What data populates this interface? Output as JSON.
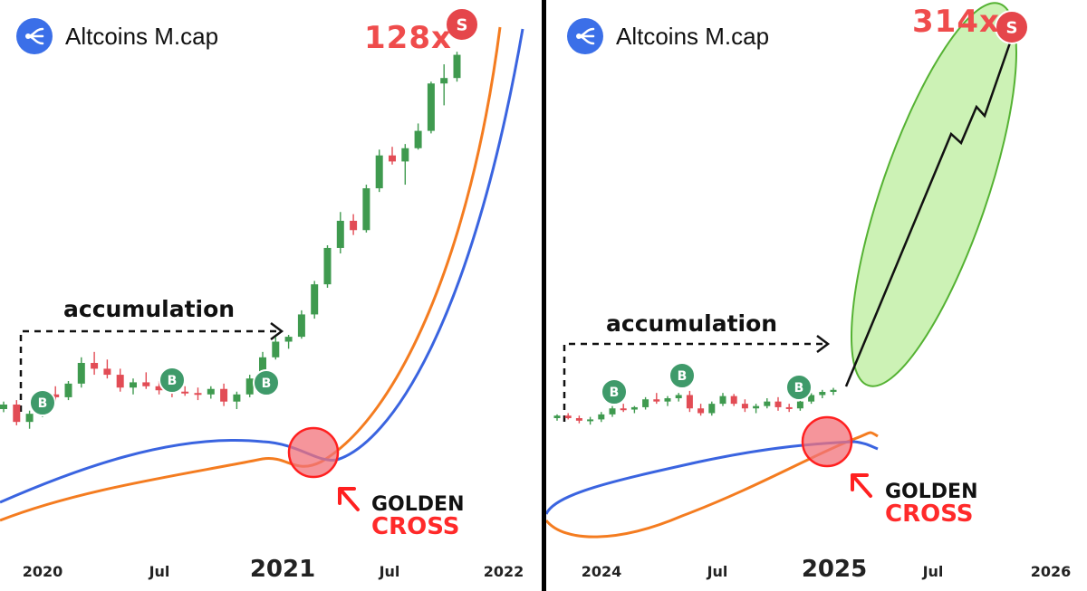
{
  "left": {
    "brand": "Altcoins M.cap",
    "multiplier": "128x",
    "accumulation": "accumulation",
    "golden_cross": [
      "GOLDEN",
      "CROSS"
    ],
    "buy_label": "B",
    "sell_label": "S",
    "x_ticks": [
      "2020",
      "Jul",
      "2021",
      "Jul",
      "2022"
    ]
  },
  "right": {
    "brand": "Altcoins M.cap",
    "multiplier": "314x",
    "accumulation": "accumulation",
    "golden_cross": [
      "GOLDEN",
      "CROSS"
    ],
    "buy_label": "B",
    "sell_label": "S",
    "x_ticks": [
      "2024",
      "Jul",
      "2025",
      "Jul",
      "2026"
    ]
  },
  "colors": {
    "up": "#3f9a4f",
    "down": "#e24c55",
    "orange_ma": "#f47c20",
    "blue_ma": "#3a64e0",
    "buy_badge": "#3f9a6a",
    "sell_badge": "#e5464b",
    "cross_circle": "#f2727a",
    "projection_fill": "#c3f0a8"
  },
  "chart_data": [
    {
      "type": "candlestick",
      "title": "Altcoins M.cap",
      "x_ticks": [
        "2020",
        "Jul",
        "2021",
        "Jul",
        "2022"
      ],
      "candles_relative": [
        [
          1.0,
          1.05,
          0.98,
          1.03
        ],
        [
          1.03,
          1.06,
          0.9,
          0.92
        ],
        [
          0.92,
          0.99,
          0.88,
          0.97
        ],
        [
          0.97,
          1.12,
          0.95,
          1.1
        ],
        [
          1.1,
          1.16,
          1.05,
          1.08
        ],
        [
          1.08,
          1.2,
          1.06,
          1.18
        ],
        [
          1.18,
          1.4,
          1.15,
          1.35
        ],
        [
          1.35,
          1.45,
          1.25,
          1.3
        ],
        [
          1.3,
          1.38,
          1.22,
          1.25
        ],
        [
          1.25,
          1.3,
          1.12,
          1.15
        ],
        [
          1.15,
          1.22,
          1.1,
          1.19
        ],
        [
          1.19,
          1.27,
          1.14,
          1.16
        ],
        [
          1.16,
          1.2,
          1.1,
          1.13
        ],
        [
          1.13,
          1.18,
          1.08,
          1.12
        ],
        [
          1.12,
          1.16,
          1.09,
          1.11
        ],
        [
          1.11,
          1.15,
          1.06,
          1.1
        ],
        [
          1.1,
          1.16,
          1.07,
          1.14
        ],
        [
          1.14,
          1.18,
          1.02,
          1.05
        ],
        [
          1.05,
          1.12,
          1.0,
          1.1
        ],
        [
          1.1,
          1.25,
          1.08,
          1.22
        ],
        [
          1.22,
          1.45,
          1.2,
          1.4
        ],
        [
          1.4,
          1.6,
          1.38,
          1.55
        ],
        [
          1.55,
          1.62,
          1.48,
          1.6
        ],
        [
          1.6,
          1.9,
          1.58,
          1.85
        ],
        [
          1.85,
          2.3,
          1.8,
          2.25
        ],
        [
          2.25,
          2.9,
          2.2,
          2.85
        ],
        [
          2.85,
          3.6,
          2.75,
          3.4
        ],
        [
          3.4,
          3.55,
          3.1,
          3.2
        ],
        [
          3.2,
          4.3,
          3.15,
          4.2
        ],
        [
          4.2,
          5.4,
          4.1,
          5.2
        ],
        [
          5.2,
          5.5,
          4.9,
          5.0
        ],
        [
          5.0,
          5.6,
          4.3,
          5.45
        ],
        [
          5.45,
          6.4,
          5.4,
          6.1
        ],
        [
          6.1,
          8.4,
          6.0,
          8.3
        ],
        [
          8.3,
          9.4,
          7.2,
          8.6
        ],
        [
          8.6,
          10.2,
          8.4,
          10.0
        ]
      ],
      "buy_markers": 3,
      "sell_markers": 1,
      "multiplier": "128x"
    },
    {
      "type": "candlestick",
      "title": "Altcoins M.cap",
      "x_ticks": [
        "2024",
        "Jul",
        "2025",
        "Jul",
        "2026"
      ],
      "candles_relative": [
        [
          1.0,
          1.03,
          0.98,
          1.02
        ],
        [
          1.02,
          1.04,
          0.99,
          1.0
        ],
        [
          1.0,
          1.02,
          0.96,
          0.98
        ],
        [
          0.98,
          1.01,
          0.95,
          0.99
        ],
        [
          0.99,
          1.05,
          0.97,
          1.03
        ],
        [
          1.03,
          1.1,
          1.01,
          1.08
        ],
        [
          1.08,
          1.12,
          1.05,
          1.07
        ],
        [
          1.07,
          1.1,
          1.04,
          1.09
        ],
        [
          1.09,
          1.18,
          1.07,
          1.16
        ],
        [
          1.16,
          1.22,
          1.12,
          1.14
        ],
        [
          1.14,
          1.19,
          1.1,
          1.17
        ],
        [
          1.17,
          1.22,
          1.14,
          1.2
        ],
        [
          1.2,
          1.24,
          1.05,
          1.08
        ],
        [
          1.08,
          1.12,
          1.02,
          1.04
        ],
        [
          1.04,
          1.14,
          1.02,
          1.12
        ],
        [
          1.12,
          1.22,
          1.1,
          1.19
        ],
        [
          1.19,
          1.21,
          1.1,
          1.12
        ],
        [
          1.12,
          1.16,
          1.05,
          1.08
        ],
        [
          1.08,
          1.12,
          1.04,
          1.1
        ],
        [
          1.1,
          1.17,
          1.08,
          1.14
        ],
        [
          1.14,
          1.18,
          1.06,
          1.09
        ],
        [
          1.09,
          1.12,
          1.05,
          1.08
        ],
        [
          1.08,
          1.16,
          1.06,
          1.14
        ],
        [
          1.14,
          1.22,
          1.12,
          1.2
        ],
        [
          1.2,
          1.25,
          1.17,
          1.23
        ],
        [
          1.23,
          1.27,
          1.2,
          1.25
        ]
      ],
      "projection": "rising path toward 314x",
      "buy_markers": 3,
      "sell_markers": 1,
      "multiplier": "314x"
    }
  ]
}
